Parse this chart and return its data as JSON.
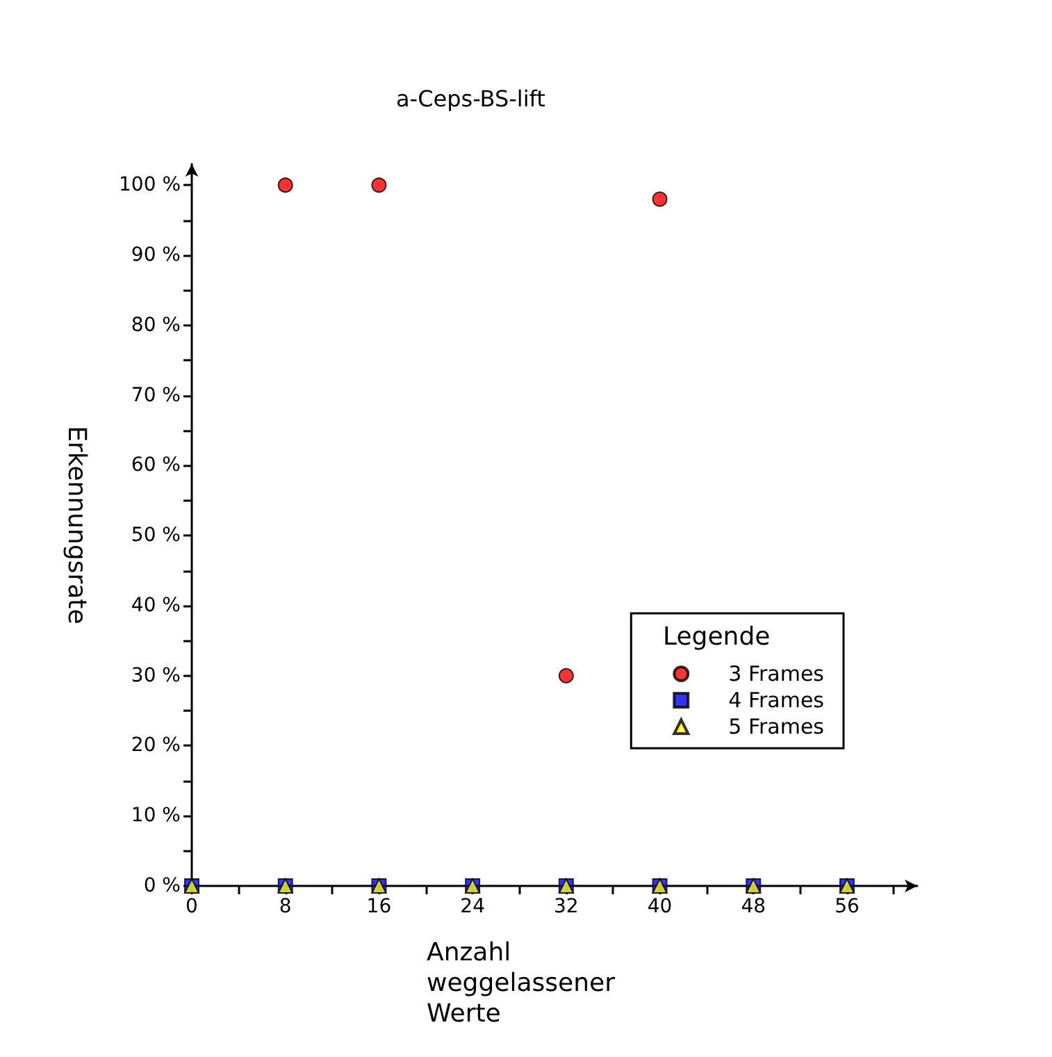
{
  "chart_data": {
    "type": "scatter",
    "title": "a-Ceps-BS-lift",
    "xlabel": "Anzahl weggelassener Werte",
    "ylabel": "Erkennungsrate",
    "legend_title": "Legende",
    "legend": "right",
    "grid": false,
    "x": [
      0,
      8,
      16,
      24,
      32,
      40,
      48,
      56
    ],
    "series": [
      {
        "name": "3 Frames",
        "color": "#ff0000",
        "marker": "circle",
        "values": [
          null,
          100,
          100,
          null,
          30,
          98,
          null,
          null
        ]
      },
      {
        "name": "4 Frames",
        "color": "#0000ff",
        "marker": "square",
        "values": [
          0,
          0,
          0,
          0,
          0,
          0,
          0,
          0
        ]
      },
      {
        "name": "5 Frames",
        "color": "#ffff00",
        "marker": "triangle",
        "values": [
          0,
          0,
          0,
          0,
          0,
          0,
          0,
          0
        ]
      }
    ],
    "xlim": [
      0,
      62
    ],
    "xticks": [
      0,
      {
        "value": 4,
        "label": null
      },
      8,
      {
        "value": 12,
        "label": null
      },
      16,
      {
        "value": 20,
        "label": null
      },
      24,
      {
        "value": 28,
        "label": null
      },
      32,
      {
        "value": 36,
        "label": null
      },
      40,
      {
        "value": 44,
        "label": null
      },
      48,
      {
        "value": 52,
        "label": null
      },
      56,
      {
        "value": 60,
        "label": null
      }
    ],
    "ylim": [
      0,
      103
    ],
    "yticks": [
      {
        "value": 0,
        "label": "0 %"
      },
      {
        "value": 5,
        "label": null
      },
      {
        "value": 10,
        "label": "10 %"
      },
      {
        "value": 15,
        "label": null
      },
      {
        "value": 20,
        "label": "20 %"
      },
      {
        "value": 25,
        "label": null
      },
      {
        "value": 30,
        "label": "30 %"
      },
      {
        "value": 35,
        "label": null
      },
      {
        "value": 40,
        "label": "40 %"
      },
      {
        "value": 45,
        "label": null
      },
      {
        "value": 50,
        "label": "50 %"
      },
      {
        "value": 55,
        "label": null
      },
      {
        "value": 60,
        "label": "60 %"
      },
      {
        "value": 65,
        "label": null
      },
      {
        "value": 70,
        "label": "70 %"
      },
      {
        "value": 75,
        "label": null
      },
      {
        "value": 80,
        "label": "80 %"
      },
      {
        "value": 85,
        "label": null
      },
      {
        "value": 90,
        "label": "90 %"
      },
      {
        "value": 95,
        "label": null
      },
      {
        "value": 100,
        "label": "100 %"
      }
    ]
  }
}
